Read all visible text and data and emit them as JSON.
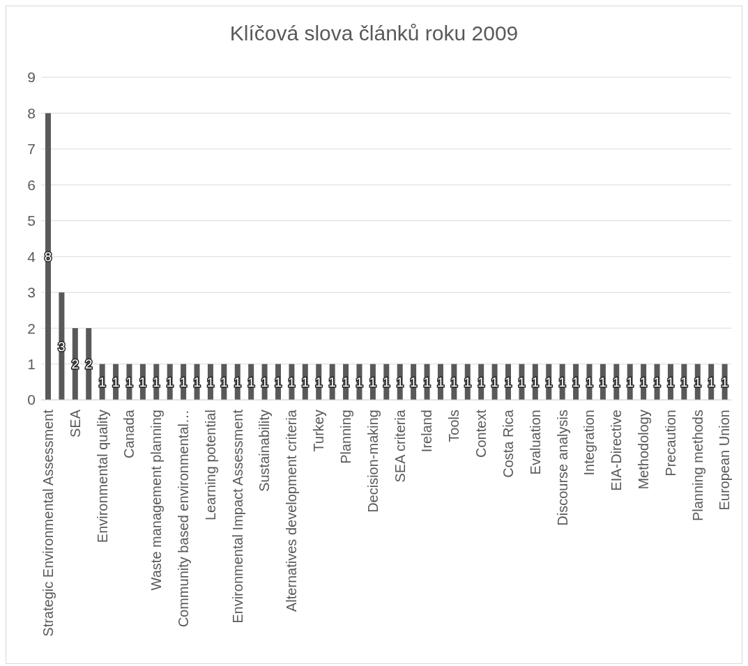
{
  "chart_data": {
    "type": "bar",
    "title": "Klíčová slova článků roku 2009",
    "categories": [
      "Strategic Environmental Assessment",
      null,
      "SEA",
      null,
      "Environmental quality",
      null,
      "Canada",
      null,
      "Waste management planning",
      null,
      "Community based environmental…",
      null,
      "Learning potential",
      null,
      "Environmental Impact Assessment",
      null,
      "Sustainability",
      null,
      "Alternatives development criteria",
      null,
      "Turkey",
      null,
      "Planning",
      null,
      "Decision-making",
      null,
      "SEA criteria",
      null,
      "Ireland",
      null,
      "Tools",
      null,
      "Context",
      null,
      "Costa Rica",
      null,
      "Evaluation",
      null,
      "Discourse analysis",
      null,
      "Integration",
      null,
      "EIA-Directive",
      null,
      "Methodology",
      null,
      "Precaution",
      null,
      "Planning methods",
      null,
      "European Union"
    ],
    "values": [
      8,
      3,
      2,
      2,
      1,
      1,
      1,
      1,
      1,
      1,
      1,
      1,
      1,
      1,
      1,
      1,
      1,
      1,
      1,
      1,
      1,
      1,
      1,
      1,
      1,
      1,
      1,
      1,
      1,
      1,
      1,
      1,
      1,
      1,
      1,
      1,
      1,
      1,
      1,
      1,
      1,
      1,
      1,
      1,
      1,
      1,
      1,
      1,
      1,
      1,
      1
    ],
    "color": "#595959",
    "ylim": [
      0,
      9
    ],
    "yticks": [
      0,
      1,
      2,
      3,
      4,
      5,
      6,
      7,
      8,
      9
    ],
    "grid": "y",
    "legend": false,
    "data_labels": true
  }
}
